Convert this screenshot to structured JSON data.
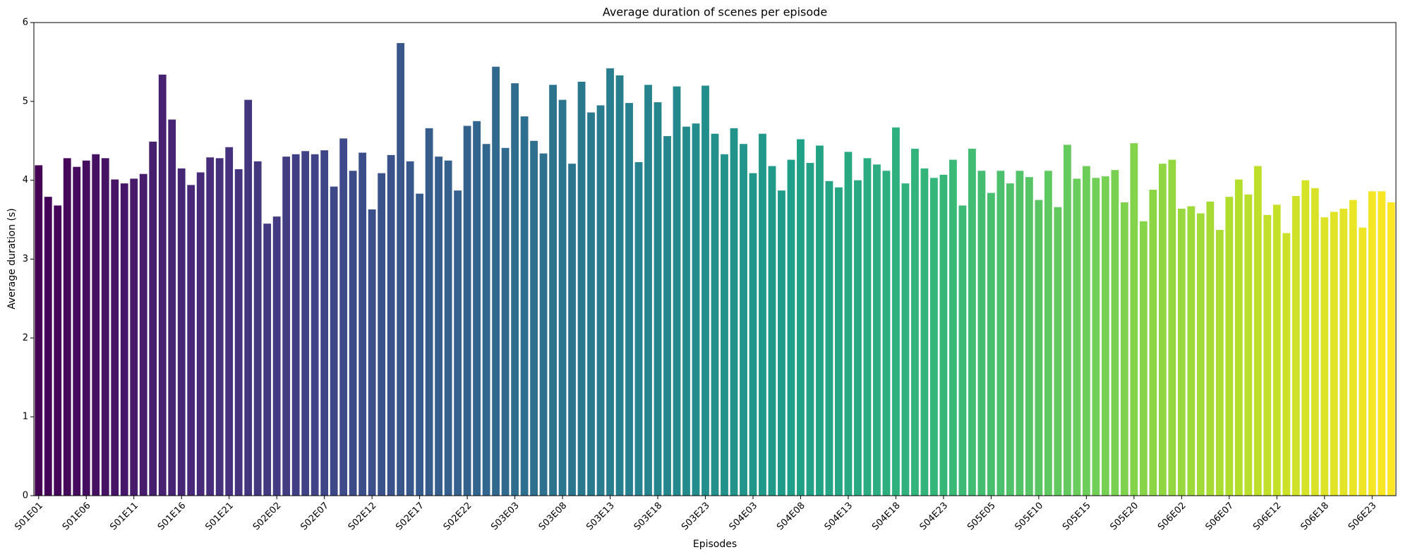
{
  "chart_data": {
    "type": "bar",
    "title": "Average duration of scenes per episode",
    "xlabel": "Episodes",
    "ylabel": "Average duration (s)",
    "colormap": "viridis",
    "categories": [
      "S01E01",
      null,
      null,
      null,
      null,
      "S01E06",
      null,
      null,
      null,
      null,
      "S01E11",
      null,
      null,
      null,
      null,
      "S01E16",
      null,
      null,
      null,
      null,
      "S01E21",
      null,
      null,
      null,
      null,
      "S02E02",
      null,
      null,
      null,
      null,
      "S02E07",
      null,
      null,
      null,
      null,
      "S02E12",
      null,
      null,
      null,
      null,
      "S02E17",
      null,
      null,
      null,
      null,
      "S02E22",
      null,
      null,
      null,
      null,
      "S03E03",
      null,
      null,
      null,
      null,
      "S03E08",
      null,
      null,
      null,
      null,
      "S03E13",
      null,
      null,
      null,
      null,
      "S03E18",
      null,
      null,
      null,
      null,
      "S03E23",
      null,
      null,
      null,
      null,
      "S04E03",
      null,
      null,
      null,
      null,
      "S04E08",
      null,
      null,
      null,
      null,
      "S04E13",
      null,
      null,
      null,
      null,
      "S04E18",
      null,
      null,
      null,
      null,
      "S04E23",
      null,
      null,
      null,
      null,
      "S05E05",
      null,
      null,
      null,
      null,
      "S05E10",
      null,
      null,
      null,
      null,
      "S05E15",
      null,
      null,
      null,
      null,
      "S05E20",
      null,
      null,
      null,
      null,
      "S06E02",
      null,
      null,
      null,
      null,
      "S06E07",
      null,
      null,
      null,
      null,
      "S06E12",
      null,
      null,
      null,
      null,
      "S06E18",
      null,
      null,
      null,
      null,
      "S06E23",
      null,
      null
    ],
    "values": [
      4.19,
      3.79,
      3.68,
      4.28,
      4.17,
      4.25,
      4.33,
      4.28,
      4.01,
      3.96,
      4.02,
      4.08,
      4.49,
      5.34,
      4.77,
      4.15,
      3.94,
      4.1,
      4.29,
      4.28,
      4.42,
      4.14,
      5.02,
      4.24,
      3.45,
      3.54,
      4.3,
      4.33,
      4.37,
      4.33,
      4.38,
      3.92,
      4.53,
      4.12,
      4.35,
      3.63,
      4.09,
      4.32,
      5.74,
      4.24,
      3.83,
      4.66,
      4.3,
      4.25,
      3.87,
      4.69,
      4.75,
      4.46,
      5.44,
      4.41,
      5.23,
      4.81,
      4.5,
      4.34,
      5.21,
      5.02,
      4.21,
      5.25,
      4.86,
      4.95,
      5.42,
      5.33,
      4.98,
      4.23,
      5.21,
      4.99,
      4.56,
      5.19,
      4.68,
      4.72,
      5.2,
      4.59,
      4.33,
      4.66,
      4.46,
      4.09,
      4.59,
      4.18,
      3.87,
      4.26,
      4.52,
      4.22,
      4.44,
      3.99,
      3.91,
      4.36,
      4.0,
      4.28,
      4.2,
      4.12,
      4.67,
      3.96,
      4.4,
      4.15,
      4.03,
      4.07,
      4.26,
      3.68,
      4.4,
      4.12,
      3.84,
      4.12,
      3.96,
      4.12,
      4.04,
      3.75,
      4.12,
      3.66,
      4.45,
      4.02,
      4.18,
      4.03,
      4.05,
      4.13,
      3.72,
      4.47,
      3.48,
      3.88,
      4.21,
      4.26,
      3.64,
      3.67,
      3.58,
      3.73,
      3.37,
      3.79,
      4.01,
      3.82,
      4.18,
      3.56,
      3.69,
      3.33,
      3.8,
      4.0,
      3.9,
      3.53,
      3.6,
      3.64,
      3.75,
      3.4,
      3.86,
      3.86,
      3.72
    ],
    "ylim": [
      0,
      6
    ],
    "yticks": [
      0,
      1,
      2,
      3,
      4,
      5,
      6
    ],
    "grid": false
  }
}
